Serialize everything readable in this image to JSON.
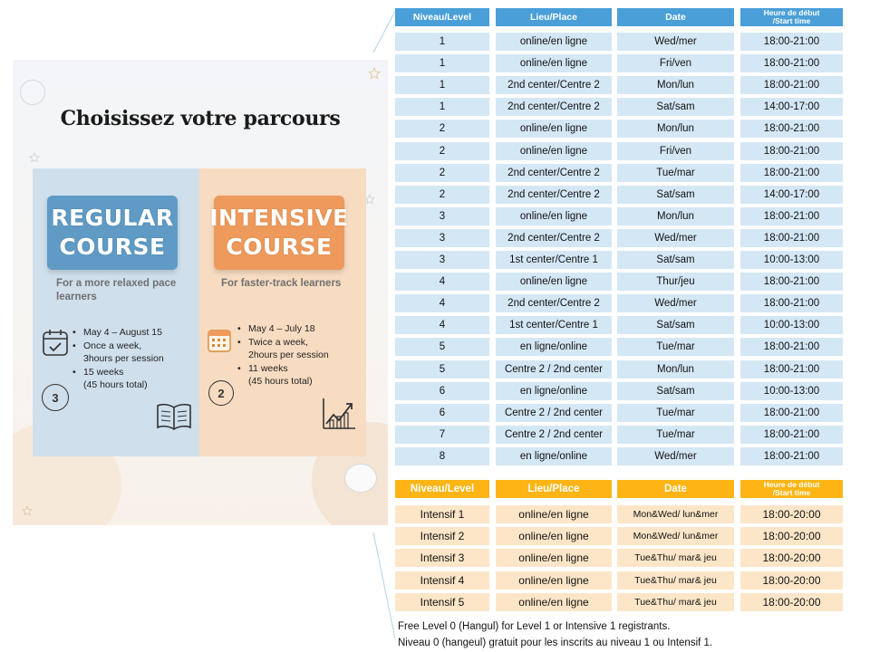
{
  "promo": {
    "title": "Choisissez votre parcours",
    "regular": {
      "badge_line1": "REGULAR",
      "badge_line2": "COURSE",
      "tagline": "For a more relaxed pace learners",
      "bullets": [
        "May 4 – August 15",
        "Once a week,",
        "15 weeks"
      ],
      "sublines": [
        "3hours per session",
        "(45 hours total)"
      ],
      "calendar_badge_number": "3",
      "colors": {
        "panel": "#cfdfec",
        "badge": "#5f9bc4"
      }
    },
    "intensive": {
      "badge_line1": "INTENSIVE",
      "badge_line2": "COURSE",
      "tagline": "For faster-track learners",
      "bullets": [
        "May 4 – July 18",
        "Twice a week,",
        "11 weeks"
      ],
      "sublines": [
        "2hours per session",
        "(45 hours total)"
      ],
      "calendar_badge_number": "2",
      "colors": {
        "panel": "#f7dcc2",
        "badge": "#ee9a5c"
      }
    }
  },
  "regular_table": {
    "headers": [
      "Niveau/Level",
      "Lieu/Place",
      "Date",
      "Heure de début",
      "/Start time"
    ],
    "rows": [
      [
        "1",
        "online/en ligne",
        "Wed/mer",
        "18:00-21:00"
      ],
      [
        "1",
        "online/en ligne",
        "Fri/ven",
        "18:00-21:00"
      ],
      [
        "1",
        "2nd center/Centre 2",
        "Mon/lun",
        "18:00-21:00"
      ],
      [
        "1",
        "2nd center/Centre 2",
        "Sat/sam",
        "14:00-17:00"
      ],
      [
        "2",
        "online/en ligne",
        "Mon/lun",
        "18:00-21:00"
      ],
      [
        "2",
        "online/en ligne",
        "Fri/ven",
        "18:00-21:00"
      ],
      [
        "2",
        "2nd center/Centre 2",
        "Tue/mar",
        "18:00-21:00"
      ],
      [
        "2",
        "2nd center/Centre 2",
        "Sat/sam",
        "14:00-17:00"
      ],
      [
        "3",
        "online/en ligne",
        "Mon/lun",
        "18:00-21:00"
      ],
      [
        "3",
        "2nd center/Centre 2",
        "Wed/mer",
        "18:00-21:00"
      ],
      [
        "3",
        "1st center/Centre 1",
        "Sat/sam",
        "10:00-13:00"
      ],
      [
        "4",
        "online/en ligne",
        "Thur/jeu",
        "18:00-21:00"
      ],
      [
        "4",
        "2nd center/Centre 2",
        "Wed/mer",
        "18:00-21:00"
      ],
      [
        "4",
        "1st center/Centre 1",
        "Sat/sam",
        "10:00-13:00"
      ],
      [
        "5",
        "en ligne/online",
        "Tue/mar",
        "18:00-21:00"
      ],
      [
        "5",
        "Centre 2 / 2nd center",
        "Mon/lun",
        "18:00-21:00"
      ],
      [
        "6",
        "en ligne/online",
        "Sat/sam",
        "10:00-13:00"
      ],
      [
        "6",
        "Centre 2 / 2nd center",
        "Tue/mar",
        "18:00-21:00"
      ],
      [
        "7",
        "Centre 2 / 2nd center",
        "Tue/mar",
        "18:00-21:00"
      ],
      [
        "8",
        "en ligne/online",
        "Wed/mer",
        "18:00-21:00"
      ]
    ],
    "colors": {
      "header": "#4a9fd8",
      "cell": "#d4e7f5"
    }
  },
  "intensive_table": {
    "headers": [
      "Niveau/Level",
      "Lieu/Place",
      "Date",
      "Heure de début",
      "/Start time"
    ],
    "rows": [
      [
        "Intensif 1",
        "online/en ligne",
        "Mon&Wed/ lun&mer",
        "18:00-20:00"
      ],
      [
        "Intensif 2",
        "online/en ligne",
        "Mon&Wed/ lun&mer",
        "18:00-20:00"
      ],
      [
        "Intensif 3",
        "online/en ligne",
        "Tue&Thu/ mar& jeu",
        "18:00-20:00"
      ],
      [
        "Intensif 4",
        "online/en ligne",
        "Tue&Thu/ mar& jeu",
        "18:00-20:00"
      ],
      [
        "Intensif 5",
        "online/en ligne",
        "Tue&Thu/ mar& jeu",
        "18:00-20:00"
      ]
    ],
    "colors": {
      "header": "#fcb515",
      "cell": "#fde6c8"
    }
  },
  "notes": [
    "Free Level 0 (Hangul) for Level 1 or Intensive 1 registrants.",
    "Niveau 0 (hangeul) gratuit pour les inscrits au niveau 1 ou Intensif 1."
  ]
}
